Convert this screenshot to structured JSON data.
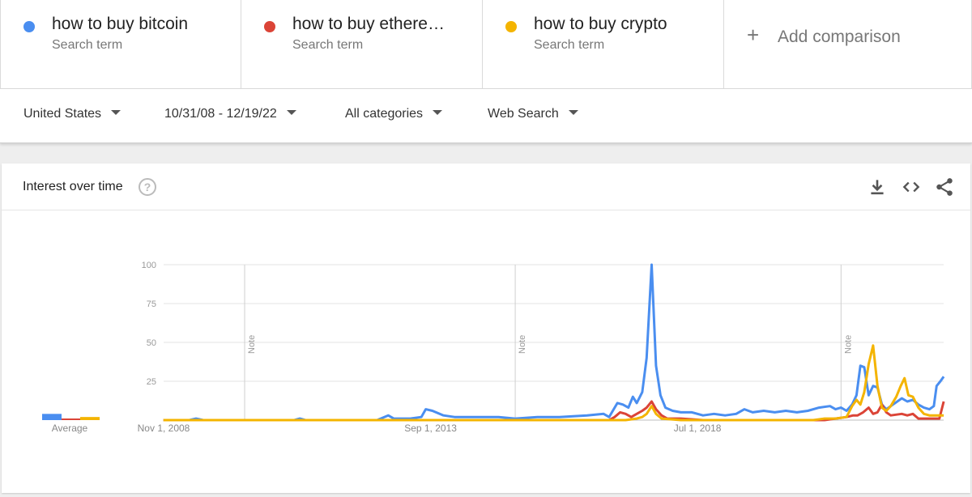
{
  "terms": [
    {
      "name": "how to buy bitcoin",
      "sub": "Search term",
      "color": "#4a8ef0"
    },
    {
      "name": "how to buy ethere…",
      "sub": "Search term",
      "color": "#db4437"
    },
    {
      "name": "how to buy crypto",
      "sub": "Search term",
      "color": "#f4b400"
    }
  ],
  "add_comparison": {
    "plus": "+",
    "label": "Add comparison"
  },
  "filters": {
    "region": "United States",
    "date_range": "10/31/08 - 12/19/22",
    "category": "All categories",
    "search_type": "Web Search"
  },
  "card": {
    "title": "Interest over time",
    "help": "?",
    "icons": [
      "download-icon",
      "embed-icon",
      "share-icon"
    ]
  },
  "chart_data": {
    "type": "line",
    "y_ticks": [
      "100",
      "75",
      "50",
      "25"
    ],
    "ylim": [
      0,
      100
    ],
    "x_tick_labels": [
      "Nov 1, 2008",
      "Sep 1, 2013",
      "Jul 1, 2018"
    ],
    "x_tick_positions": [
      2008.833,
      2013.667,
      2018.5
    ],
    "xlim": [
      2008.833,
      2022.958
    ],
    "notes": [
      {
        "x": 2010.3,
        "label": "Note"
      },
      {
        "x": 2015.2,
        "label": "Note"
      },
      {
        "x": 2021.1,
        "label": "Note"
      }
    ],
    "average": {
      "label": "Average",
      "values": [
        4,
        1,
        2
      ]
    },
    "grid": true,
    "series": [
      {
        "name": "how to buy bitcoin",
        "color": "#4a8ef0",
        "points": [
          [
            2008.83,
            0
          ],
          [
            2009.3,
            0
          ],
          [
            2009.42,
            1
          ],
          [
            2009.55,
            0
          ],
          [
            2011.2,
            0
          ],
          [
            2011.3,
            1
          ],
          [
            2011.4,
            0
          ],
          [
            2012.7,
            0
          ],
          [
            2012.9,
            3
          ],
          [
            2013.0,
            1
          ],
          [
            2013.3,
            1
          ],
          [
            2013.5,
            2
          ],
          [
            2013.58,
            7
          ],
          [
            2013.7,
            6
          ],
          [
            2013.9,
            3
          ],
          [
            2014.1,
            2
          ],
          [
            2014.5,
            2
          ],
          [
            2014.9,
            2
          ],
          [
            2015.2,
            1
          ],
          [
            2015.6,
            2
          ],
          [
            2016.0,
            2
          ],
          [
            2016.5,
            3
          ],
          [
            2016.8,
            4
          ],
          [
            2016.9,
            2
          ],
          [
            2017.05,
            11
          ],
          [
            2017.15,
            10
          ],
          [
            2017.25,
            8
          ],
          [
            2017.33,
            15
          ],
          [
            2017.4,
            11
          ],
          [
            2017.5,
            18
          ],
          [
            2017.58,
            40
          ],
          [
            2017.67,
            100
          ],
          [
            2017.75,
            35
          ],
          [
            2017.83,
            16
          ],
          [
            2017.92,
            8
          ],
          [
            2018.05,
            6
          ],
          [
            2018.2,
            5
          ],
          [
            2018.4,
            5
          ],
          [
            2018.6,
            3
          ],
          [
            2018.8,
            4
          ],
          [
            2019.0,
            3
          ],
          [
            2019.2,
            4
          ],
          [
            2019.35,
            7
          ],
          [
            2019.5,
            5
          ],
          [
            2019.7,
            6
          ],
          [
            2019.9,
            5
          ],
          [
            2020.1,
            6
          ],
          [
            2020.3,
            5
          ],
          [
            2020.5,
            6
          ],
          [
            2020.7,
            8
          ],
          [
            2020.9,
            9
          ],
          [
            2021.0,
            7
          ],
          [
            2021.1,
            8
          ],
          [
            2021.2,
            6
          ],
          [
            2021.3,
            10
          ],
          [
            2021.38,
            16
          ],
          [
            2021.45,
            35
          ],
          [
            2021.52,
            34
          ],
          [
            2021.6,
            16
          ],
          [
            2021.68,
            22
          ],
          [
            2021.76,
            21
          ],
          [
            2021.84,
            10
          ],
          [
            2021.92,
            7
          ],
          [
            2022.0,
            9
          ],
          [
            2022.2,
            14
          ],
          [
            2022.3,
            12
          ],
          [
            2022.4,
            13
          ],
          [
            2022.5,
            10
          ],
          [
            2022.6,
            8
          ],
          [
            2022.7,
            7
          ],
          [
            2022.78,
            9
          ],
          [
            2022.83,
            22
          ],
          [
            2022.9,
            25
          ],
          [
            2022.96,
            28
          ]
        ]
      },
      {
        "name": "how to buy ethere…",
        "color": "#db4437",
        "points": [
          [
            2008.83,
            0
          ],
          [
            2016.9,
            0
          ],
          [
            2017.0,
            2
          ],
          [
            2017.1,
            5
          ],
          [
            2017.2,
            4
          ],
          [
            2017.3,
            2
          ],
          [
            2017.4,
            4
          ],
          [
            2017.5,
            6
          ],
          [
            2017.58,
            8
          ],
          [
            2017.67,
            12
          ],
          [
            2017.75,
            7
          ],
          [
            2017.85,
            3
          ],
          [
            2017.95,
            1
          ],
          [
            2018.2,
            1
          ],
          [
            2018.6,
            0
          ],
          [
            2020.4,
            0
          ],
          [
            2020.8,
            0
          ],
          [
            2021.0,
            1
          ],
          [
            2021.2,
            2
          ],
          [
            2021.32,
            3
          ],
          [
            2021.4,
            3
          ],
          [
            2021.5,
            5
          ],
          [
            2021.6,
            8
          ],
          [
            2021.68,
            4
          ],
          [
            2021.76,
            5
          ],
          [
            2021.84,
            10
          ],
          [
            2021.92,
            5
          ],
          [
            2022.0,
            3
          ],
          [
            2022.2,
            4
          ],
          [
            2022.3,
            3
          ],
          [
            2022.4,
            4
          ],
          [
            2022.5,
            1
          ],
          [
            2022.7,
            1
          ],
          [
            2022.88,
            1
          ],
          [
            2022.96,
            12
          ]
        ]
      },
      {
        "name": "how to buy crypto",
        "color": "#f4b400",
        "points": [
          [
            2008.83,
            0
          ],
          [
            2017.2,
            0
          ],
          [
            2017.4,
            1
          ],
          [
            2017.5,
            2
          ],
          [
            2017.58,
            4
          ],
          [
            2017.67,
            9
          ],
          [
            2017.75,
            4
          ],
          [
            2017.85,
            1
          ],
          [
            2018.2,
            0
          ],
          [
            2020.6,
            0
          ],
          [
            2020.8,
            1
          ],
          [
            2021.0,
            1
          ],
          [
            2021.2,
            2
          ],
          [
            2021.3,
            9
          ],
          [
            2021.38,
            13
          ],
          [
            2021.45,
            10
          ],
          [
            2021.52,
            18
          ],
          [
            2021.6,
            36
          ],
          [
            2021.68,
            48
          ],
          [
            2021.76,
            22
          ],
          [
            2021.84,
            8
          ],
          [
            2021.92,
            6
          ],
          [
            2022.0,
            9
          ],
          [
            2022.1,
            15
          ],
          [
            2022.18,
            22
          ],
          [
            2022.25,
            27
          ],
          [
            2022.32,
            16
          ],
          [
            2022.4,
            15
          ],
          [
            2022.5,
            8
          ],
          [
            2022.6,
            4
          ],
          [
            2022.7,
            3
          ],
          [
            2022.8,
            3
          ],
          [
            2022.96,
            3
          ]
        ]
      }
    ]
  }
}
